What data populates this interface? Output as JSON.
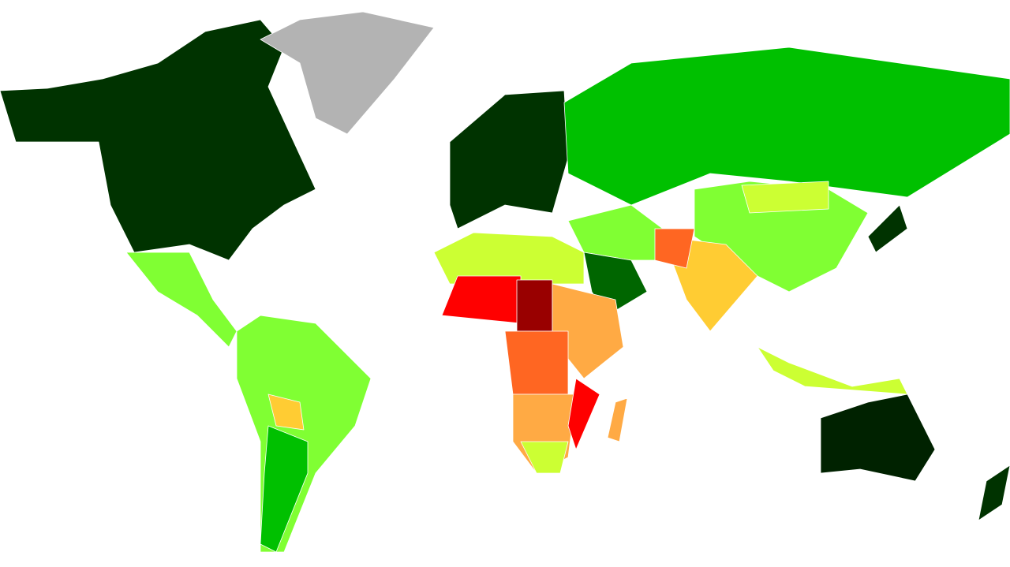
{
  "map": {
    "colors": [
      "#003300",
      "#002200",
      "#b3b3b3",
      "#80ff33",
      "#00c000",
      "#006600",
      "#ccff33",
      "#ffcc33",
      "#ffaa44",
      "#ff6622",
      "#ff0000",
      "#990000"
    ]
  }
}
